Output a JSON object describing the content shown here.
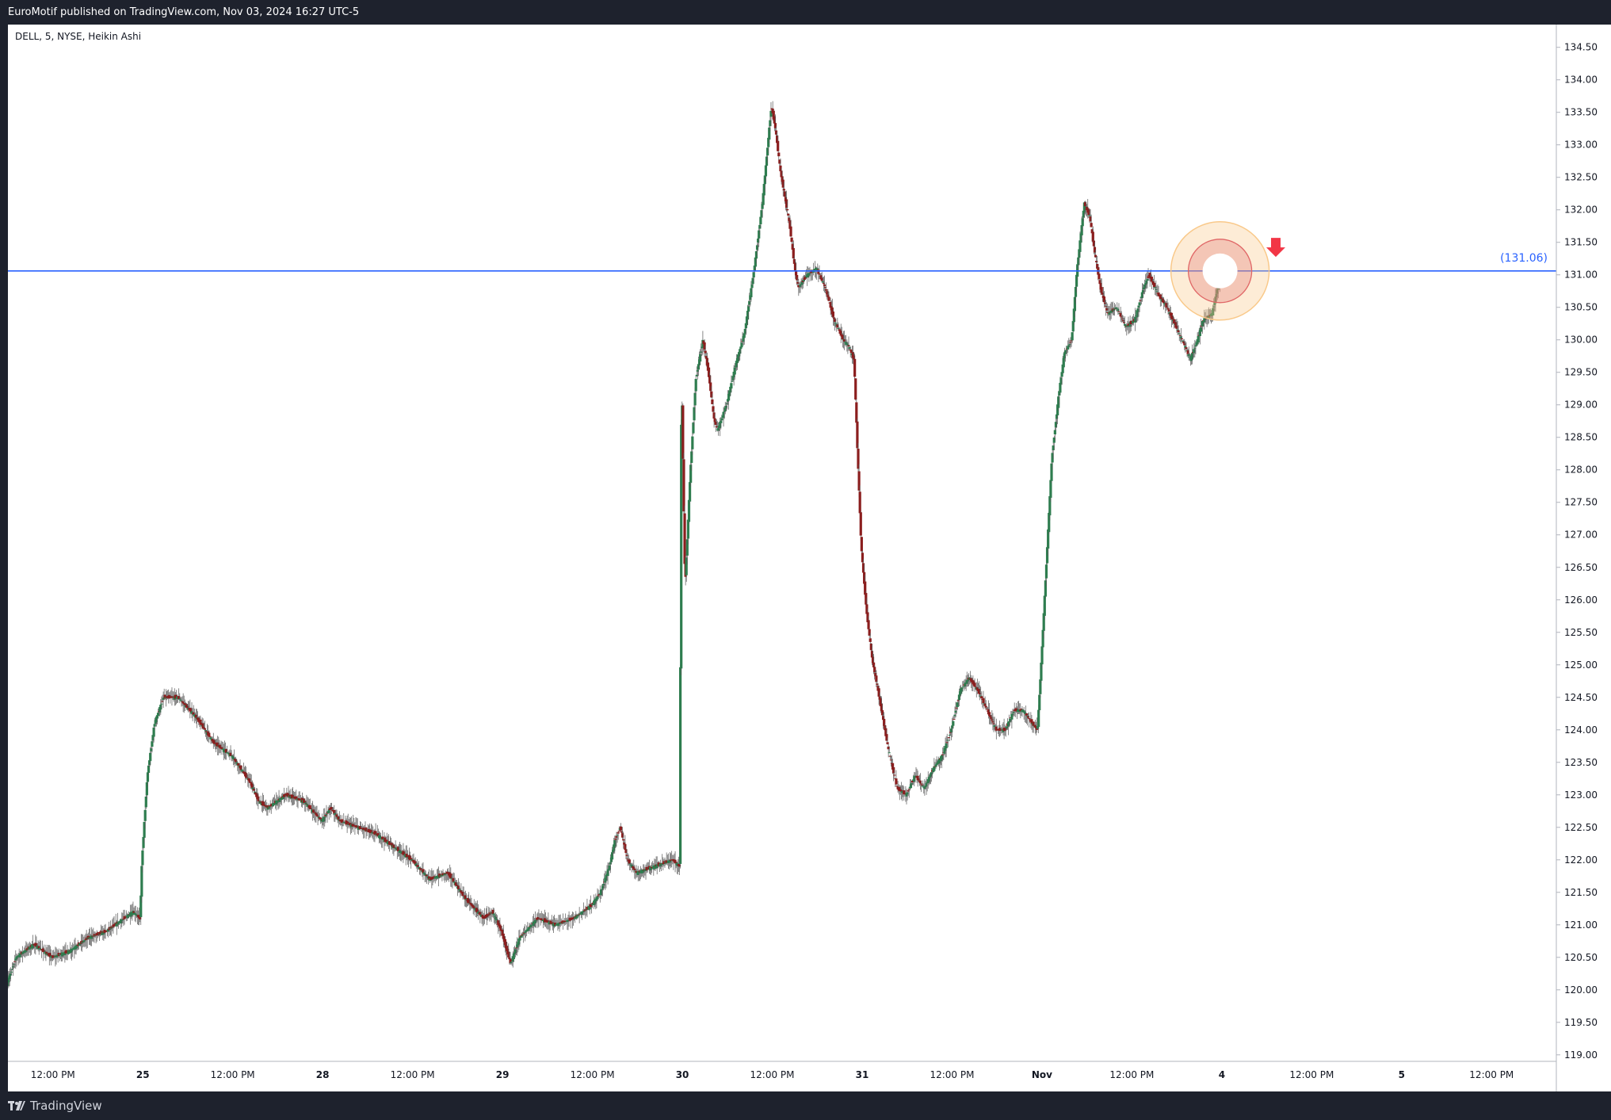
{
  "header": {
    "publish_info": "EuroMotif published on TradingView.com, Nov 03, 2024 16:27 UTC-5"
  },
  "footer": {
    "brand": "TradingView",
    "logo_icon": "tradingview-logo-icon"
  },
  "colors": {
    "background": "#ffffff",
    "frame": "#1e222d",
    "up_candle": "#2e7d4f",
    "down_candle": "#8b1e1e",
    "wick": "#555555",
    "horizontal_line": "#2962ff",
    "circle_outer": "#f9c98a",
    "circle_inner": "#e06666",
    "arrow": "#f23645"
  },
  "chart_data": {
    "type": "candlestick",
    "title": "DELL, 5, NYSE, Heikin Ashi",
    "symbol": "DELL",
    "interval": "5",
    "exchange": "NYSE",
    "chart_style": "Heikin Ashi",
    "ylim": [
      118.9,
      134.85
    ],
    "y_ticks": [
      "119.00",
      "119.50",
      "120.00",
      "120.50",
      "121.00",
      "121.50",
      "122.00",
      "122.50",
      "123.00",
      "123.50",
      "124.00",
      "124.50",
      "125.00",
      "125.50",
      "126.00",
      "126.50",
      "127.00",
      "127.50",
      "128.00",
      "128.50",
      "129.00",
      "129.50",
      "130.00",
      "130.50",
      "131.00",
      "131.50",
      "132.00",
      "132.50",
      "133.00",
      "133.50",
      "134.00",
      "134.50"
    ],
    "x_ticks": [
      {
        "label": "12:00 PM",
        "t": 0.5
      },
      {
        "label": "25",
        "t": 1.0
      },
      {
        "label": "12:00 PM",
        "t": 1.5
      },
      {
        "label": "28",
        "t": 2.0
      },
      {
        "label": "12:00 PM",
        "t": 2.5
      },
      {
        "label": "29",
        "t": 3.0
      },
      {
        "label": "12:00 PM",
        "t": 3.5
      },
      {
        "label": "30",
        "t": 4.0
      },
      {
        "label": "12:00 PM",
        "t": 4.5
      },
      {
        "label": "31",
        "t": 5.0
      },
      {
        "label": "12:00 PM",
        "t": 5.5
      },
      {
        "label": "Nov",
        "t": 6.0
      },
      {
        "label": "12:00 PM",
        "t": 6.5
      },
      {
        "label": "4",
        "t": 7.0
      },
      {
        "label": "12:00 PM",
        "t": 7.5
      },
      {
        "label": "5",
        "t": 8.0
      },
      {
        "label": "12:00 PM",
        "t": 8.5
      }
    ],
    "x_range": [
      0.25,
      8.86
    ],
    "price_path": [
      [
        0.25,
        120.1
      ],
      [
        0.3,
        120.5
      ],
      [
        0.4,
        120.7
      ],
      [
        0.5,
        120.5
      ],
      [
        0.6,
        120.6
      ],
      [
        0.7,
        120.8
      ],
      [
        0.8,
        120.9
      ],
      [
        0.95,
        121.2
      ],
      [
        0.99,
        121.1
      ],
      [
        1.0,
        122.0
      ],
      [
        1.03,
        123.3
      ],
      [
        1.07,
        124.1
      ],
      [
        1.12,
        124.5
      ],
      [
        1.2,
        124.5
      ],
      [
        1.3,
        124.2
      ],
      [
        1.4,
        123.8
      ],
      [
        1.5,
        123.6
      ],
      [
        1.55,
        123.4
      ],
      [
        1.6,
        123.2
      ],
      [
        1.65,
        122.9
      ],
      [
        1.7,
        122.8
      ],
      [
        1.75,
        122.9
      ],
      [
        1.8,
        123.0
      ],
      [
        1.9,
        122.9
      ],
      [
        2.0,
        122.6
      ],
      [
        2.05,
        122.8
      ],
      [
        2.1,
        122.6
      ],
      [
        2.2,
        122.5
      ],
      [
        2.3,
        122.4
      ],
      [
        2.35,
        122.3
      ],
      [
        2.45,
        122.1
      ],
      [
        2.5,
        122.0
      ],
      [
        2.6,
        121.7
      ],
      [
        2.7,
        121.8
      ],
      [
        2.8,
        121.4
      ],
      [
        2.9,
        121.1
      ],
      [
        2.95,
        121.2
      ],
      [
        3.0,
        120.9
      ],
      [
        3.05,
        120.4
      ],
      [
        3.1,
        120.8
      ],
      [
        3.2,
        121.1
      ],
      [
        3.3,
        121.0
      ],
      [
        3.4,
        121.1
      ],
      [
        3.5,
        121.3
      ],
      [
        3.55,
        121.5
      ],
      [
        3.6,
        121.9
      ],
      [
        3.63,
        122.3
      ],
      [
        3.66,
        122.5
      ],
      [
        3.7,
        122.0
      ],
      [
        3.75,
        121.8
      ],
      [
        3.85,
        121.9
      ],
      [
        3.95,
        122.0
      ],
      [
        3.99,
        121.9
      ],
      [
        4.0,
        129.6
      ],
      [
        4.02,
        126.2
      ],
      [
        4.05,
        128.0
      ],
      [
        4.08,
        129.4
      ],
      [
        4.12,
        130.0
      ],
      [
        4.15,
        129.5
      ],
      [
        4.18,
        128.8
      ],
      [
        4.2,
        128.6
      ],
      [
        4.25,
        129.0
      ],
      [
        4.3,
        129.6
      ],
      [
        4.35,
        130.1
      ],
      [
        4.4,
        131.0
      ],
      [
        4.45,
        132.1
      ],
      [
        4.48,
        133.0
      ],
      [
        4.5,
        133.6
      ],
      [
        4.52,
        133.3
      ],
      [
        4.55,
        132.6
      ],
      [
        4.6,
        131.8
      ],
      [
        4.63,
        131.1
      ],
      [
        4.65,
        130.8
      ],
      [
        4.7,
        131.0
      ],
      [
        4.75,
        131.1
      ],
      [
        4.8,
        130.8
      ],
      [
        4.85,
        130.3
      ],
      [
        4.9,
        130.0
      ],
      [
        4.93,
        129.9
      ],
      [
        4.96,
        129.7
      ],
      [
        4.98,
        128.2
      ],
      [
        5.0,
        126.8
      ],
      [
        5.03,
        125.8
      ],
      [
        5.06,
        125.1
      ],
      [
        5.1,
        124.5
      ],
      [
        5.15,
        123.7
      ],
      [
        5.2,
        123.1
      ],
      [
        5.25,
        123.0
      ],
      [
        5.3,
        123.3
      ],
      [
        5.35,
        123.1
      ],
      [
        5.4,
        123.4
      ],
      [
        5.45,
        123.6
      ],
      [
        5.5,
        124.0
      ],
      [
        5.55,
        124.6
      ],
      [
        5.6,
        124.8
      ],
      [
        5.65,
        124.6
      ],
      [
        5.7,
        124.3
      ],
      [
        5.75,
        124.0
      ],
      [
        5.8,
        124.0
      ],
      [
        5.85,
        124.3
      ],
      [
        5.9,
        124.3
      ],
      [
        5.95,
        124.1
      ],
      [
        5.98,
        124.0
      ],
      [
        6.0,
        125.0
      ],
      [
        6.03,
        126.6
      ],
      [
        6.06,
        128.2
      ],
      [
        6.1,
        129.2
      ],
      [
        6.13,
        129.8
      ],
      [
        6.17,
        130.0
      ],
      [
        6.2,
        131.1
      ],
      [
        6.24,
        132.1
      ],
      [
        6.27,
        131.9
      ],
      [
        6.3,
        131.3
      ],
      [
        6.33,
        130.8
      ],
      [
        6.37,
        130.4
      ],
      [
        6.42,
        130.5
      ],
      [
        6.47,
        130.2
      ],
      [
        6.52,
        130.3
      ],
      [
        6.57,
        130.8
      ],
      [
        6.6,
        131.0
      ],
      [
        6.65,
        130.7
      ],
      [
        6.7,
        130.5
      ],
      [
        6.75,
        130.2
      ],
      [
        6.8,
        129.9
      ],
      [
        6.83,
        129.7
      ],
      [
        6.87,
        130.0
      ],
      [
        6.9,
        130.3
      ],
      [
        6.95,
        130.4
      ],
      [
        6.99,
        130.9
      ]
    ],
    "reference_line": {
      "value": 131.06,
      "label": "(131.06)"
    },
    "annotations": [
      {
        "type": "target-circle",
        "t": 6.99,
        "price": 131.06
      },
      {
        "type": "down-arrow",
        "t": 7.3,
        "price": 131.3
      }
    ]
  }
}
